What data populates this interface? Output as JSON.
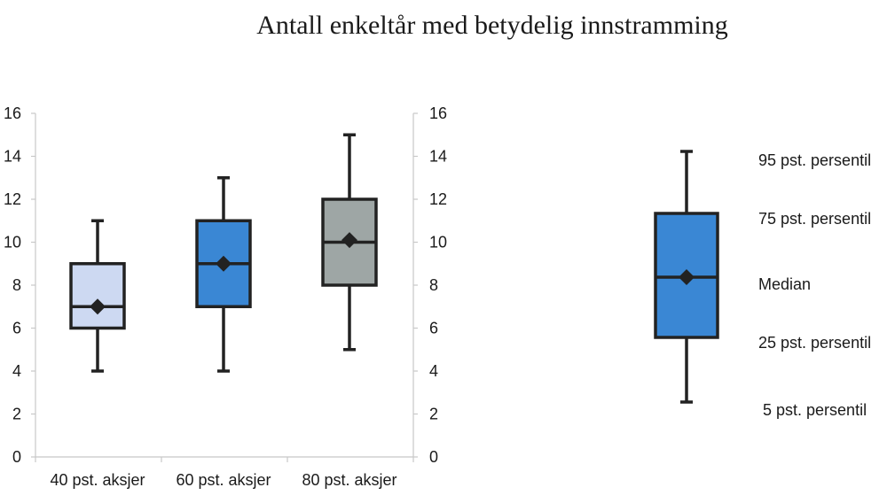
{
  "chart_data": {
    "type": "boxplot",
    "title": "Antall enkeltår med betydelig innstramming",
    "ylim": [
      0,
      16
    ],
    "yticks": [
      0,
      2,
      4,
      6,
      8,
      10,
      12,
      14,
      16
    ],
    "secondary_axis": true,
    "grid": false,
    "categories": [
      "40 pst. aksjer",
      "60 pst. aksjer",
      "80 pst. aksjer"
    ],
    "boxes": [
      {
        "category": "40 pst. aksjer",
        "p5": 4,
        "p25": 6,
        "median": 7,
        "p75": 9,
        "p95": 11,
        "mean": 7,
        "color": "#cdd9f2"
      },
      {
        "category": "60 pst. aksjer",
        "p5": 4,
        "p25": 7,
        "median": 9,
        "p75": 11,
        "p95": 13,
        "mean": 9,
        "color": "#3a87d4"
      },
      {
        "category": "80 pst. aksjer",
        "p5": 5,
        "p25": 8,
        "median": 10,
        "p75": 12,
        "p95": 15,
        "mean": 10.1,
        "color": "#9ea6a5"
      }
    ],
    "legend": {
      "placement": "right",
      "color": "#3a87d4",
      "labels": {
        "p95": "95 pst. persentil",
        "p75": "75 pst. persentil",
        "median": "Median",
        "p25": "25 pst. persentil",
        "p5": "5 pst. persentil"
      }
    }
  }
}
